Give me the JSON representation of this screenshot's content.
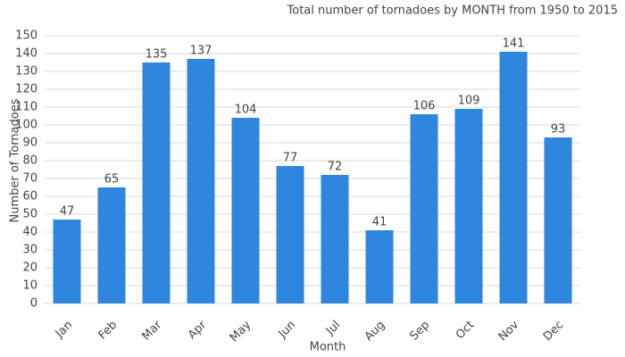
{
  "chart_data": {
    "type": "bar",
    "title": "Total number of tornadoes by MONTH from 1950 to 2015",
    "x_label": "Month",
    "y_label": "Number of Tornadoes",
    "categories": [
      "Jan",
      "Feb",
      "Mar",
      "Apr",
      "May",
      "Jun",
      "Jul",
      "Aug",
      "Sep",
      "Oct",
      "Nov",
      "Dec"
    ],
    "values": [
      47,
      65,
      135,
      137,
      104,
      77,
      72,
      41,
      106,
      109,
      141,
      93
    ],
    "color": "#2e86de",
    "ylim": [
      0,
      150
    ],
    "yticks": [
      0,
      10,
      20,
      30,
      40,
      50,
      60,
      70,
      80,
      90,
      100,
      110,
      120,
      130,
      140,
      150
    ],
    "grid": true
  }
}
